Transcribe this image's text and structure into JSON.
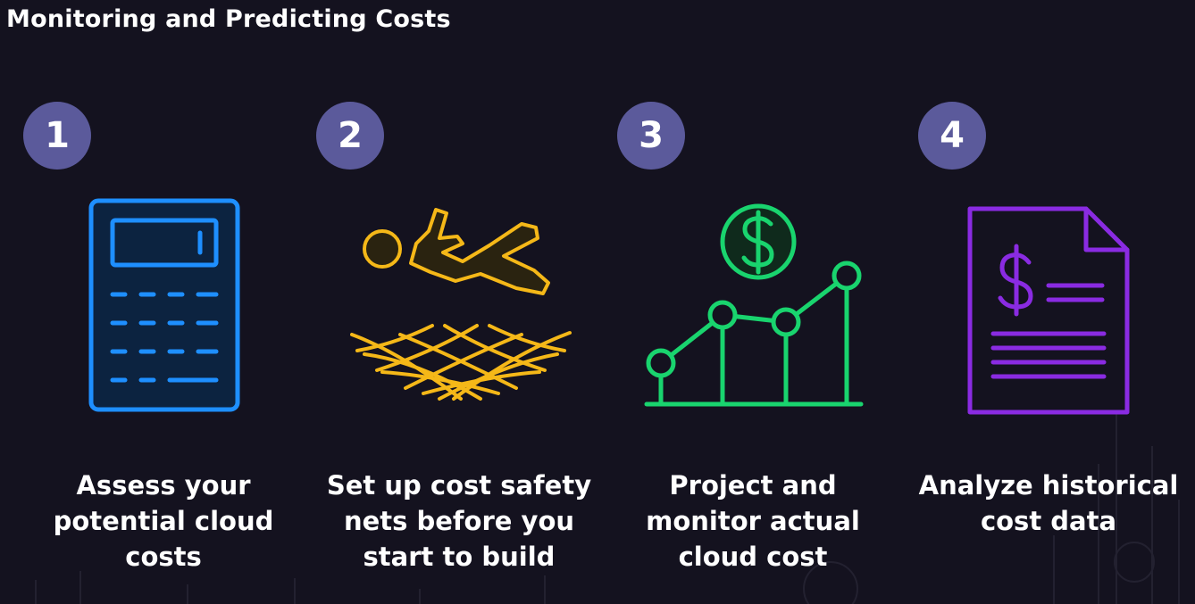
{
  "title": "Monitoring and Predicting Costs",
  "steps": [
    {
      "number": "1",
      "caption": "Assess your potential cloud costs",
      "icon": "calculator-icon",
      "color": "#1e8fff"
    },
    {
      "number": "2",
      "caption": "Set up cost safety nets before you start to build",
      "icon": "safety-net-icon",
      "color": "#f5b818"
    },
    {
      "number": "3",
      "caption": "Project and monitor actual cloud cost",
      "icon": "cost-trend-chart-icon",
      "color": "#19d46e"
    },
    {
      "number": "4",
      "caption": "Analyze historical cost data",
      "icon": "cost-document-icon",
      "color": "#8a2be2"
    }
  ],
  "colors": {
    "background": "#14121f",
    "badge": "#5b5a9b",
    "text": "#ffffff"
  }
}
